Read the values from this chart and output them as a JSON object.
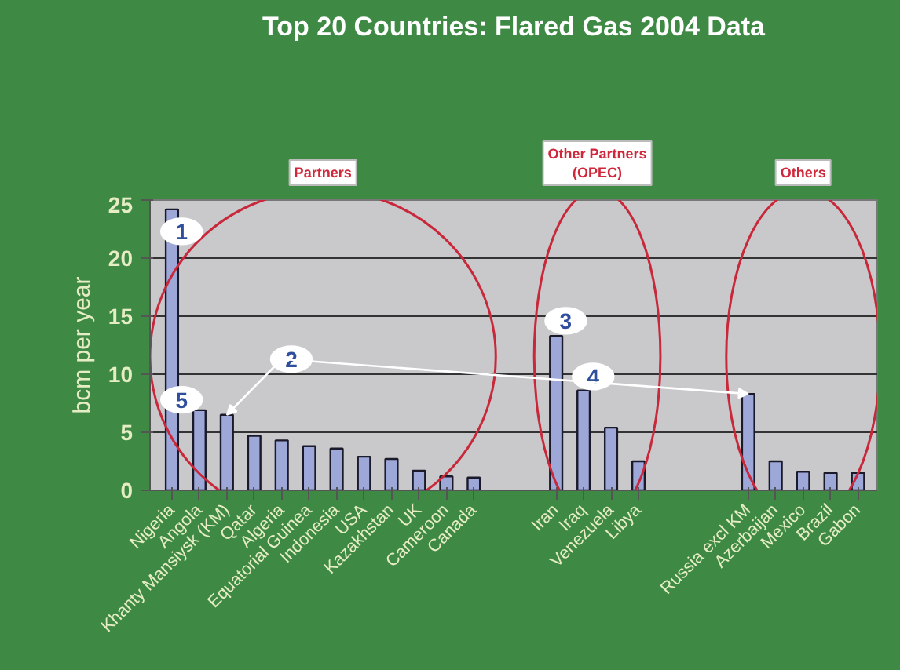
{
  "chart_data": {
    "type": "bar",
    "title": "Top 20 Countries: Flared Gas 2004 Data",
    "ylabel": "bcm per year",
    "categories": [
      "Nigeria",
      "Angola",
      "Khanty Mansiysk (KM)",
      "Qatar",
      "Algeria",
      "Equatorial Guinea",
      "Indonesia",
      "USA",
      "Kazakhstan",
      "UK",
      "Cameroon",
      "Canada",
      null,
      null,
      "Iran",
      "Iraq",
      "Venezuela",
      "Libya",
      null,
      null,
      null,
      "Russia excl KM",
      "Azerbaijan",
      "Mexico",
      "Brazil",
      "Gabon"
    ],
    "values": [
      24.2,
      6.9,
      6.5,
      4.7,
      4.3,
      3.8,
      3.6,
      2.9,
      2.7,
      1.7,
      1.2,
      1.1,
      null,
      null,
      13.3,
      8.6,
      5.4,
      2.5,
      null,
      null,
      null,
      8.3,
      2.5,
      1.6,
      1.5,
      1.5
    ],
    "color": "#9ea8d8",
    "ylim": [
      0,
      25
    ],
    "yticks": [
      0,
      5,
      10,
      15,
      20,
      25
    ],
    "grid": "y",
    "annotations": [
      "Partners",
      "Other Partners\n(OPEC)",
      "Others",
      {
        "text": "1",
        "x": "Nigeria",
        "y": 22.3
      },
      {
        "text": "2",
        "x": "Khanty Mansiysk (KM)",
        "y": 6.5
      },
      "3",
      "4",
      {
        "text": "5",
        "x": "Nigeria",
        "y": 7.8
      }
    ]
  }
}
